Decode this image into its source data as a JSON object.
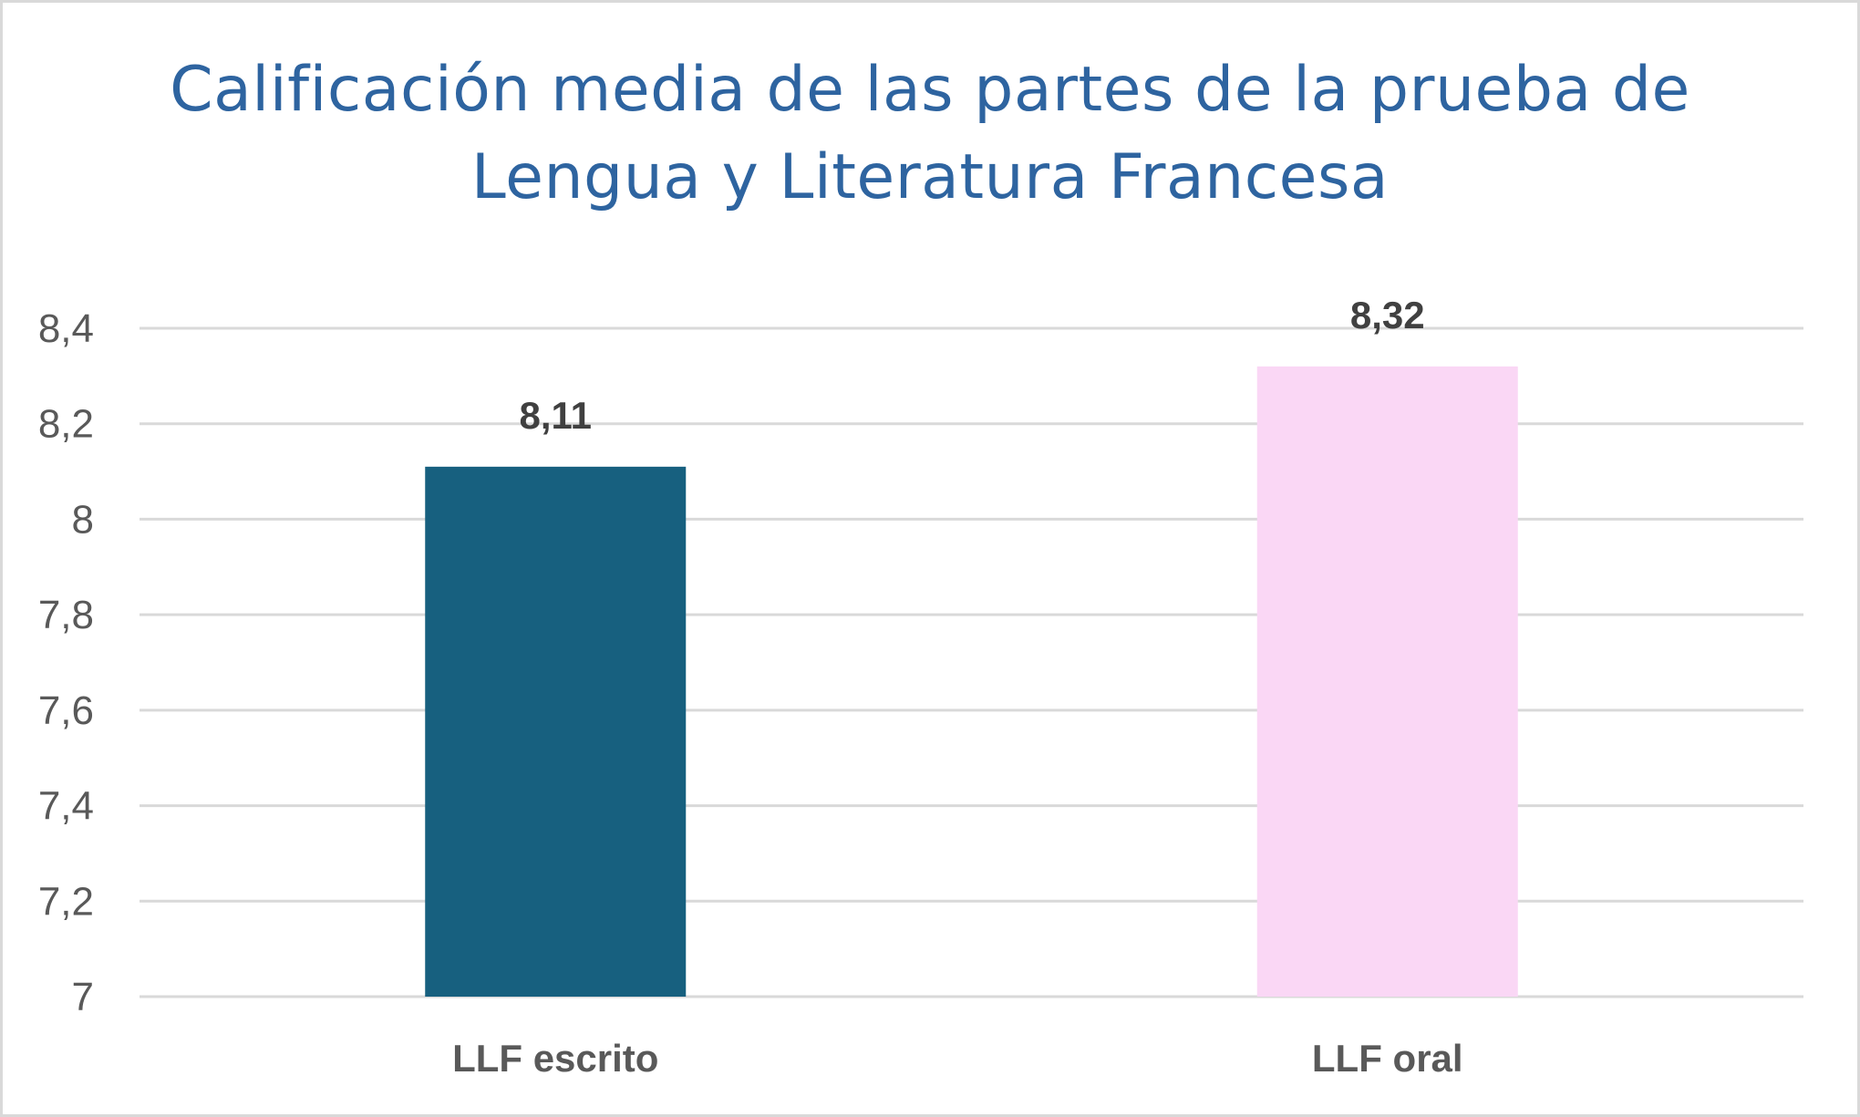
{
  "chart_data": {
    "type": "bar",
    "title": "Calificación media de las partes de la prueba de Lengua y Literatura Francesa",
    "categories": [
      "LLF escrito",
      "LLF oral"
    ],
    "values": [
      8.11,
      8.32
    ],
    "value_labels": [
      "8,11",
      "8,32"
    ],
    "bar_colors": [
      "#17607f",
      "#fad7f5"
    ],
    "xlabel": "",
    "ylabel": "",
    "ylim": [
      7,
      8.4
    ],
    "y_ticks": [
      7,
      7.2,
      7.4,
      7.6,
      7.8,
      8,
      8.2,
      8.4
    ],
    "y_tick_labels": [
      "7",
      "7,2",
      "7,4",
      "7,6",
      "7,8",
      "8",
      "8,2",
      "8,4"
    ],
    "grid": true,
    "legend": "none"
  },
  "colors": {
    "title": "#2e64a0",
    "gridline": "#d9d9d9",
    "tick_text": "#595959",
    "data_label": "#404040"
  }
}
